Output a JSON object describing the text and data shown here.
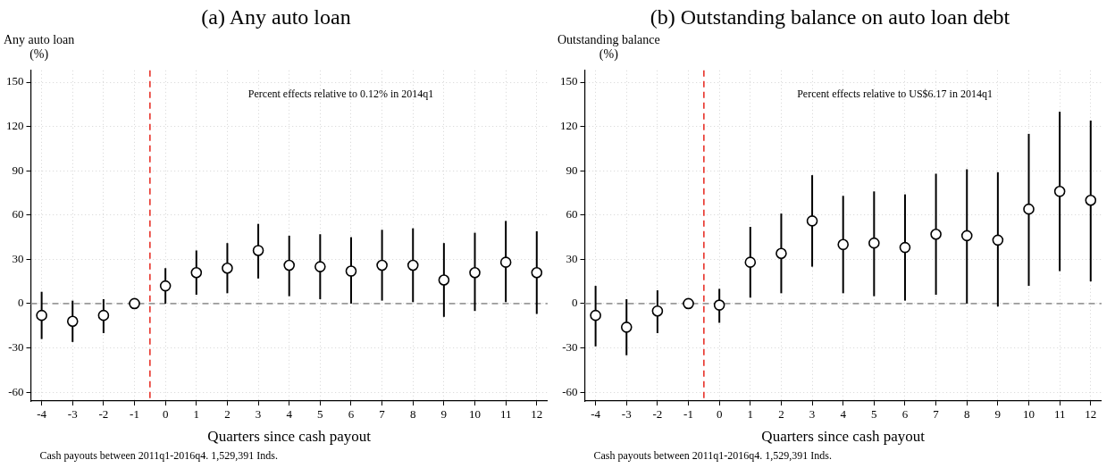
{
  "chart_data": [
    {
      "type": "scatter",
      "title": "(a) Any auto loan",
      "xlabel": "Quarters since cash payout",
      "ylabel": "Any auto loan\n(%)",
      "annotations": [
        "Percent effects relative to 0.12% in 2014q1",
        "Cash payouts between 2011q1-2016q4. 1,529,391 Inds."
      ],
      "x": [
        -4,
        -3,
        -2,
        -1,
        0,
        1,
        2,
        3,
        4,
        5,
        6,
        7,
        8,
        9,
        10,
        11,
        12
      ],
      "series": [
        {
          "color": "#000000",
          "values": [
            -8,
            -12,
            -8,
            0,
            12,
            21,
            24,
            36,
            26,
            25,
            22,
            26,
            26,
            16,
            21,
            28,
            21
          ],
          "errors": [
            [
              -24,
              8
            ],
            [
              -26,
              2
            ],
            [
              -20,
              3
            ],
            null,
            [
              0,
              24
            ],
            [
              6,
              36
            ],
            [
              7,
              41
            ],
            [
              17,
              54
            ],
            [
              5,
              46
            ],
            [
              3,
              47
            ],
            [
              0,
              45
            ],
            [
              2,
              50
            ],
            [
              1,
              51
            ],
            [
              -9,
              41
            ],
            [
              -5,
              48
            ],
            [
              1,
              56
            ],
            [
              -7,
              49
            ]
          ]
        }
      ],
      "xlim": [
        -4.35,
        12.35
      ],
      "xticks": [
        -4,
        -3,
        -2,
        -1,
        0,
        1,
        2,
        3,
        4,
        5,
        6,
        7,
        8,
        9,
        10,
        11,
        12
      ],
      "ylim": [
        -66,
        158
      ],
      "yticks": [
        -60,
        -30,
        0,
        30,
        60,
        90,
        120,
        150
      ],
      "ref_lines": [
        {
          "axis": "x",
          "value": -0.5,
          "color": "#e8332a",
          "line_style": "dashed"
        },
        {
          "axis": "y",
          "value": 0,
          "color": "#9a9a9a",
          "line_style": "dashed"
        }
      ],
      "grid": true,
      "legend": false,
      "marker": "circle"
    },
    {
      "type": "scatter",
      "title": "(b) Outstanding balance on auto loan debt",
      "xlabel": "Quarters since cash payout",
      "ylabel": "Outstanding balance\n(%)",
      "annotations": [
        "Percent effects relative to US$6.17 in 2014q1",
        "Cash payouts between 2011q1-2016q4. 1,529,391 Inds."
      ],
      "x": [
        -4,
        -3,
        -2,
        -1,
        0,
        1,
        2,
        3,
        4,
        5,
        6,
        7,
        8,
        9,
        10,
        11,
        12
      ],
      "series": [
        {
          "color": "#000000",
          "values": [
            -8,
            -16,
            -5,
            0,
            -1,
            28,
            34,
            56,
            40,
            41,
            38,
            47,
            46,
            43,
            64,
            76,
            70
          ],
          "errors": [
            [
              -29,
              12
            ],
            [
              -35,
              3
            ],
            [
              -20,
              9
            ],
            null,
            [
              -13,
              10
            ],
            [
              4,
              52
            ],
            [
              7,
              61
            ],
            [
              25,
              87
            ],
            [
              7,
              73
            ],
            [
              5,
              76
            ],
            [
              2,
              74
            ],
            [
              6,
              88
            ],
            [
              0,
              91
            ],
            [
              -2,
              89
            ],
            [
              12,
              115
            ],
            [
              22,
              130
            ],
            [
              15,
              124
            ]
          ]
        }
      ],
      "xlim": [
        -4.35,
        12.35
      ],
      "xticks": [
        -4,
        -3,
        -2,
        -1,
        0,
        1,
        2,
        3,
        4,
        5,
        6,
        7,
        8,
        9,
        10,
        11,
        12
      ],
      "ylim": [
        -66,
        158
      ],
      "yticks": [
        -60,
        -30,
        0,
        30,
        60,
        90,
        120,
        150
      ],
      "ref_lines": [
        {
          "axis": "x",
          "value": -0.5,
          "color": "#e8332a",
          "line_style": "dashed"
        },
        {
          "axis": "y",
          "value": 0,
          "color": "#9a9a9a",
          "line_style": "dashed"
        }
      ],
      "grid": true,
      "legend": false,
      "marker": "circle"
    }
  ]
}
